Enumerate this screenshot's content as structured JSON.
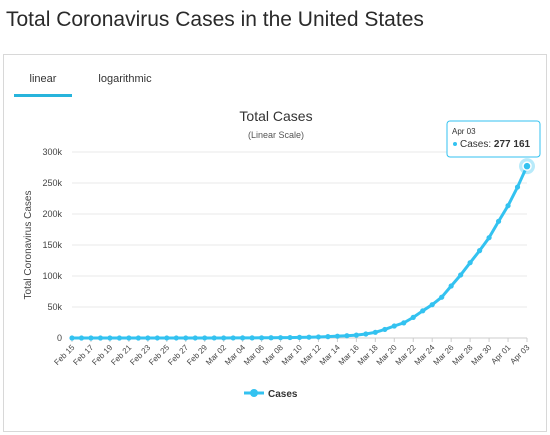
{
  "page": {
    "title": "Total Coronavirus Cases in the United States"
  },
  "tabs": [
    {
      "label": "linear",
      "active": true
    },
    {
      "label": "logarithmic",
      "active": false
    }
  ],
  "colors": {
    "series": "#33c2f0",
    "accent": "#27b4dc",
    "grid": "#e8e8e8"
  },
  "chart_data": {
    "type": "line",
    "title": "Total Cases",
    "subtitle": "(Linear Scale)",
    "xlabel": "",
    "ylabel": "Total Coronavirus Cases",
    "ylim": [
      0,
      300000
    ],
    "yticks": [
      0,
      50000,
      100000,
      150000,
      200000,
      250000,
      300000
    ],
    "ytick_labels": [
      "0",
      "50k",
      "100k",
      "150k",
      "200k",
      "250k",
      "300k"
    ],
    "x_tick_labels": [
      "Feb 15",
      "Feb 17",
      "Feb 19",
      "Feb 21",
      "Feb 23",
      "Feb 25",
      "Feb 27",
      "Feb 29",
      "Mar 02",
      "Mar 04",
      "Mar 06",
      "Mar 08",
      "Mar 10",
      "Mar 12",
      "Mar 14",
      "Mar 16",
      "Mar 18",
      "Mar 20",
      "Mar 22",
      "Mar 24",
      "Mar 26",
      "Mar 28",
      "Mar 30",
      "Apr 01",
      "Apr 03"
    ],
    "x": [
      "Feb 15",
      "Feb 16",
      "Feb 17",
      "Feb 18",
      "Feb 19",
      "Feb 20",
      "Feb 21",
      "Feb 22",
      "Feb 23",
      "Feb 24",
      "Feb 25",
      "Feb 26",
      "Feb 27",
      "Feb 28",
      "Feb 29",
      "Mar 01",
      "Mar 02",
      "Mar 03",
      "Mar 04",
      "Mar 05",
      "Mar 06",
      "Mar 07",
      "Mar 08",
      "Mar 09",
      "Mar 10",
      "Mar 11",
      "Mar 12",
      "Mar 13",
      "Mar 14",
      "Mar 15",
      "Mar 16",
      "Mar 17",
      "Mar 18",
      "Mar 19",
      "Mar 20",
      "Mar 21",
      "Mar 22",
      "Mar 23",
      "Mar 24",
      "Mar 25",
      "Mar 26",
      "Mar 27",
      "Mar 28",
      "Mar 29",
      "Mar 30",
      "Mar 31",
      "Apr 01",
      "Apr 02",
      "Apr 03"
    ],
    "series": [
      {
        "name": "Cases",
        "values": [
          15,
          15,
          15,
          15,
          15,
          15,
          15,
          35,
          35,
          53,
          53,
          59,
          60,
          60,
          68,
          75,
          100,
          124,
          158,
          221,
          319,
          435,
          541,
          704,
          994,
          1301,
          1697,
          2247,
          2943,
          3680,
          4663,
          6411,
          9197,
          13779,
          19367,
          24418,
          33272,
          43847,
          53740,
          65778,
          83836,
          101657,
          121478,
          140886,
          161807,
          188172,
          213372,
          243453,
          277161
        ]
      }
    ],
    "tooltip": {
      "date": "Apr 03",
      "series": "Cases",
      "value_text": "277 161"
    },
    "legend": {
      "position": "bottom",
      "label": "Cases"
    },
    "grid": true
  }
}
